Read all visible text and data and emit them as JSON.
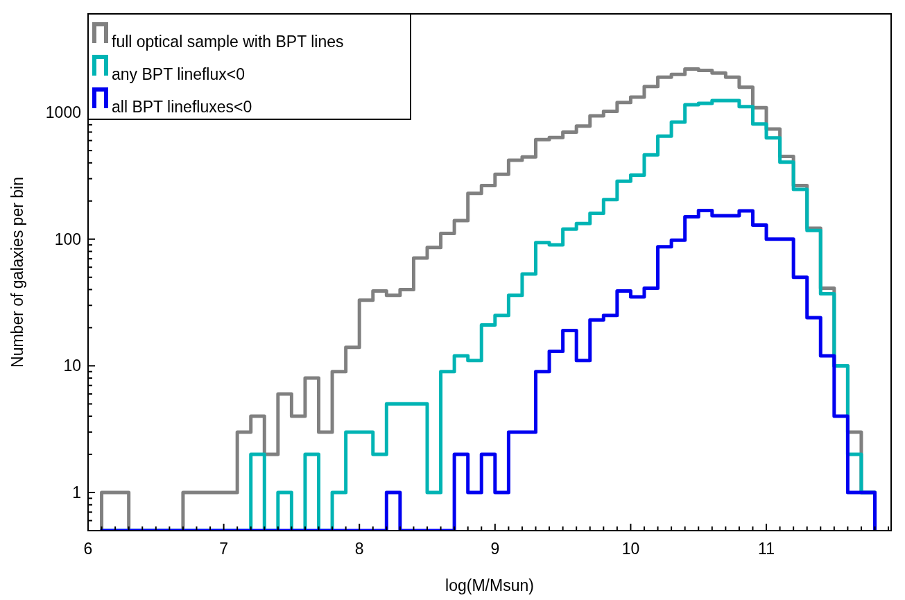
{
  "chart_data": {
    "type": "histogram",
    "xlabel": "log(M/Msun)",
    "ylabel": "Number of galaxies per bin",
    "bins": [
      6.1,
      6.2,
      6.3,
      6.4,
      6.5,
      6.6,
      6.7,
      6.8,
      6.9,
      7.0,
      7.1,
      7.2,
      7.3,
      7.4,
      7.5,
      7.6,
      7.7,
      7.8,
      7.9,
      8.0,
      8.1,
      8.2,
      8.3,
      8.4,
      8.5,
      8.6,
      8.7,
      8.8,
      8.9,
      9.0,
      9.1,
      9.2,
      9.3,
      9.4,
      9.5,
      9.6,
      9.7,
      9.8,
      9.9,
      10.0,
      10.1,
      10.2,
      10.3,
      10.4,
      10.5,
      10.6,
      10.7,
      10.8,
      10.9,
      11.0,
      11.1,
      11.2,
      11.3,
      11.4,
      11.5,
      11.6,
      11.7,
      11.8
    ],
    "series": [
      {
        "name": "full optical sample with BPT lines",
        "color": "#808080",
        "values": [
          1,
          1,
          null,
          null,
          null,
          null,
          1,
          1,
          1,
          1,
          3,
          4,
          2,
          6,
          4,
          8,
          3,
          9,
          14,
          33,
          39,
          36,
          40,
          71,
          86,
          111,
          140,
          230,
          265,
          325,
          420,
          445,
          610,
          635,
          700,
          780,
          940,
          1020,
          1200,
          1320,
          1600,
          1900,
          2000,
          2200,
          2150,
          2050,
          1900,
          1580,
          1090,
          740,
          450,
          265,
          122,
          41,
          10,
          3,
          1
        ]
      },
      {
        "name": "any BPT lineflux<0",
        "color": "#00b4b4",
        "values": [
          null,
          null,
          null,
          null,
          null,
          null,
          null,
          null,
          null,
          null,
          null,
          2,
          null,
          1,
          null,
          2,
          null,
          1,
          3,
          3,
          2,
          5,
          5,
          5,
          1,
          9,
          12,
          11,
          21,
          25,
          36,
          53,
          94,
          90,
          120,
          133,
          160,
          205,
          287,
          320,
          463,
          650,
          840,
          1150,
          1180,
          1240,
          1240,
          1110,
          810,
          630,
          405,
          247,
          117,
          37,
          10,
          2,
          1
        ]
      },
      {
        "name": "all BPT linefluxes<0",
        "color": "#0000f0",
        "values": [
          null,
          null,
          null,
          null,
          null,
          null,
          null,
          null,
          null,
          null,
          null,
          null,
          null,
          null,
          null,
          null,
          null,
          null,
          null,
          null,
          null,
          1,
          null,
          null,
          null,
          null,
          2,
          1,
          2,
          1,
          3,
          3,
          9,
          13,
          19,
          11,
          23,
          25,
          39,
          35,
          41,
          87,
          98,
          150,
          168,
          153,
          153,
          167,
          129,
          100,
          100,
          50,
          24,
          12,
          4,
          1,
          1
        ]
      }
    ],
    "xlim": [
      6,
      11.92
    ],
    "ylim": [
      0.5,
      6000
    ],
    "log": "y",
    "legend": "top left",
    "xticks": [
      6,
      {
        "value": 6.1,
        "label": null
      },
      {
        "value": 6.2,
        "label": null
      },
      {
        "value": 6.3,
        "label": null
      },
      {
        "value": 6.4,
        "label": null
      },
      {
        "value": 6.5,
        "label": null
      },
      {
        "value": 6.6,
        "label": null
      },
      {
        "value": 6.7,
        "label": null
      },
      {
        "value": 6.8,
        "label": null
      },
      {
        "value": 6.9,
        "label": null
      },
      7,
      {
        "value": 7.1,
        "label": null
      },
      {
        "value": 7.2,
        "label": null
      },
      {
        "value": 7.3,
        "label": null
      },
      {
        "value": 7.4,
        "label": null
      },
      {
        "value": 7.5,
        "label": null
      },
      {
        "value": 7.6,
        "label": null
      },
      {
        "value": 7.7,
        "label": null
      },
      {
        "value": 7.8,
        "label": null
      },
      {
        "value": 7.9,
        "label": null
      },
      8,
      {
        "value": 8.1,
        "label": null
      },
      {
        "value": 8.2,
        "label": null
      },
      {
        "value": 8.3,
        "label": null
      },
      {
        "value": 8.4,
        "label": null
      },
      {
        "value": 8.5,
        "label": null
      },
      {
        "value": 8.6,
        "label": null
      },
      {
        "value": 8.7,
        "label": null
      },
      {
        "value": 8.8,
        "label": null
      },
      {
        "value": 8.9,
        "label": null
      },
      9,
      {
        "value": 9.1,
        "label": null
      },
      {
        "value": 9.2,
        "label": null
      },
      {
        "value": 9.3,
        "label": null
      },
      {
        "value": 9.4,
        "label": null
      },
      {
        "value": 9.5,
        "label": null
      },
      {
        "value": 9.6,
        "label": null
      },
      {
        "value": 9.7,
        "label": null
      },
      {
        "value": 9.8,
        "label": null
      },
      {
        "value": 9.9,
        "label": null
      },
      10,
      {
        "value": 10.1,
        "label": null
      },
      {
        "value": 10.2,
        "label": null
      },
      {
        "value": 10.3,
        "label": null
      },
      {
        "value": 10.4,
        "label": null
      },
      {
        "value": 10.5,
        "label": null
      },
      {
        "value": 10.6,
        "label": null
      },
      {
        "value": 10.7,
        "label": null
      },
      {
        "value": 10.8,
        "label": null
      },
      {
        "value": 10.9,
        "label": null
      },
      11,
      {
        "value": 11.1,
        "label": null
      },
      {
        "value": 11.2,
        "label": null
      },
      {
        "value": 11.3,
        "label": null
      },
      {
        "value": 11.4,
        "label": null
      },
      {
        "value": 11.5,
        "label": null
      },
      {
        "value": 11.6,
        "label": null
      },
      {
        "value": 11.7,
        "label": null
      },
      {
        "value": 11.8,
        "label": null
      },
      {
        "value": 11.9,
        "label": null
      }
    ],
    "yticks": [
      {
        "value": 0.6,
        "label": null
      },
      {
        "value": 0.7,
        "label": null
      },
      {
        "value": 0.8,
        "label": null
      },
      {
        "value": 0.9,
        "label": null
      },
      1,
      {
        "value": 2,
        "label": null
      },
      {
        "value": 3,
        "label": null
      },
      {
        "value": 4,
        "label": null
      },
      {
        "value": 5,
        "label": null
      },
      {
        "value": 6,
        "label": null
      },
      {
        "value": 7,
        "label": null
      },
      {
        "value": 8,
        "label": null
      },
      {
        "value": 9,
        "label": null
      },
      10,
      {
        "value": 20,
        "label": null
      },
      {
        "value": 30,
        "label": null
      },
      {
        "value": 40,
        "label": null
      },
      {
        "value": 50,
        "label": null
      },
      {
        "value": 60,
        "label": null
      },
      {
        "value": 70,
        "label": null
      },
      {
        "value": 80,
        "label": null
      },
      {
        "value": 90,
        "label": null
      },
      100,
      {
        "value": 200,
        "label": null
      },
      {
        "value": 300,
        "label": null
      },
      {
        "value": 400,
        "label": null
      },
      {
        "value": 500,
        "label": null
      },
      {
        "value": 600,
        "label": null
      },
      {
        "value": 700,
        "label": null
      },
      {
        "value": 800,
        "label": null
      },
      {
        "value": 900,
        "label": null
      },
      1000,
      {
        "value": 2000,
        "label": null
      },
      {
        "value": 3000,
        "label": null
      },
      {
        "value": 4000,
        "label": null
      },
      {
        "value": 5000,
        "label": null
      }
    ]
  }
}
